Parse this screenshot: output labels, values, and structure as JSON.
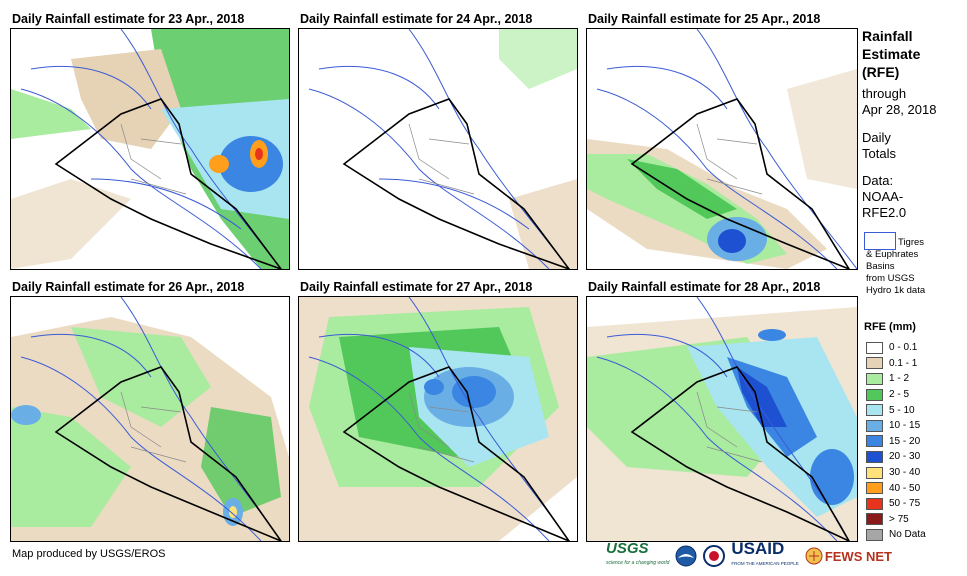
{
  "panels": [
    {
      "title": "Daily Rainfall estimate for 23 Apr., 2018"
    },
    {
      "title": "Daily Rainfall estimate for 24 Apr., 2018"
    },
    {
      "title": "Daily Rainfall estimate for 25 Apr., 2018"
    },
    {
      "title": "Daily Rainfall estimate for 26 Apr., 2018"
    },
    {
      "title": "Daily Rainfall estimate for 27 Apr., 2018"
    },
    {
      "title": "Daily Rainfall estimate for 28 Apr., 2018"
    }
  ],
  "sidebar": {
    "title_line1": "Rainfall",
    "title_line2": "Estimate",
    "title_line3": "(RFE)",
    "through": "through",
    "date": "Apr 28, 2018",
    "daily": "Daily",
    "totals": "Totals",
    "data_label": "Data:",
    "data_source1": "NOAA-",
    "data_source2": "RFE2.0",
    "basin_line1": "Tigres",
    "basin_line2": "& Euphrates",
    "basin_line3": "Basins",
    "basin_line4": "from USGS",
    "basin_line5": "Hydro 1k data"
  },
  "legend": {
    "title": "RFE (mm)",
    "items": [
      {
        "label": "0 - 0.1",
        "color": "#ffffff"
      },
      {
        "label": "0.1 - 1",
        "color": "#e6d2b4"
      },
      {
        "label": "1 - 2",
        "color": "#a9eb9f"
      },
      {
        "label": "2 - 5",
        "color": "#52c85a"
      },
      {
        "label": "5 - 10",
        "color": "#a9e5f0"
      },
      {
        "label": "10 - 15",
        "color": "#6aaee6"
      },
      {
        "label": "15 - 20",
        "color": "#3a86e2"
      },
      {
        "label": "20 - 30",
        "color": "#1e50d2"
      },
      {
        "label": "30 - 40",
        "color": "#ffe37a"
      },
      {
        "label": "40 - 50",
        "color": "#ff9f1c"
      },
      {
        "label": "50 - 75",
        "color": "#e8341c"
      },
      {
        "label": "> 75",
        "color": "#8b1a1a"
      },
      {
        "label": "No Data",
        "color": "#a6a6a6"
      }
    ]
  },
  "credit": "Map produced by USGS/EROS",
  "logos": {
    "usgs": "USGS",
    "usgs_tag": "science for a changing world",
    "usaid": "USAID",
    "usaid_tag": "FROM THE AMERICAN PEOPLE",
    "fews": "FEWS NET"
  },
  "colors": {
    "border": "#000000",
    "basin": "#3b5bd6",
    "province": "#8a8a8a"
  }
}
